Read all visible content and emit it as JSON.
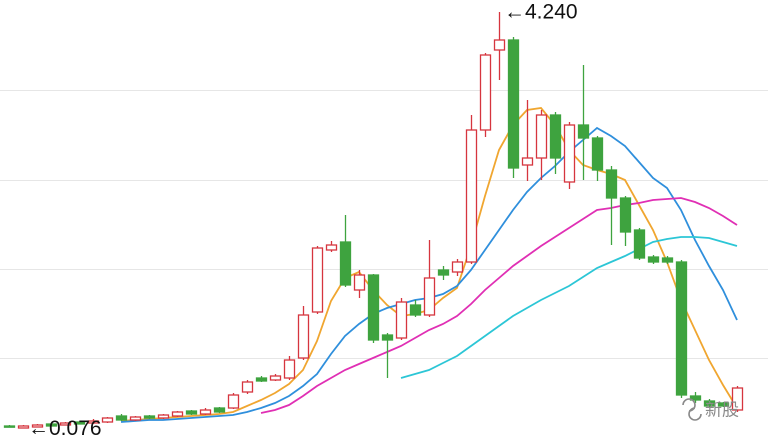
{
  "chart_data": {
    "type": "candlestick",
    "ylim": [
      -0.12,
      4.36
    ],
    "up_color": "#d6353e",
    "down_color": "#3ea33f",
    "open": [
      0.1,
      0.08,
      0.09,
      0.12,
      0.11,
      0.14,
      0.13,
      0.14,
      0.2,
      0.16,
      0.2,
      0.18,
      0.2,
      0.25,
      0.22,
      0.28,
      0.28,
      0.44,
      0.58,
      0.56,
      0.58,
      0.78,
      1.24,
      1.86,
      1.94,
      1.46,
      1.61,
      1.01,
      0.98,
      1.31,
      1.21,
      1.66,
      1.64,
      1.74,
      3.06,
      3.86,
      3.96,
      2.71,
      2.78,
      3.21,
      2.54,
      3.11,
      2.98,
      2.66,
      2.38,
      2.06,
      1.79,
      1.78,
      1.74,
      0.4,
      0.35,
      0.33,
      0.26
    ],
    "close": [
      0.09,
      0.1,
      0.11,
      0.1,
      0.13,
      0.12,
      0.15,
      0.18,
      0.16,
      0.19,
      0.18,
      0.21,
      0.24,
      0.22,
      0.26,
      0.24,
      0.41,
      0.54,
      0.55,
      0.6,
      0.76,
      1.21,
      1.88,
      1.91,
      1.51,
      1.61,
      0.96,
      0.96,
      1.34,
      1.21,
      1.58,
      1.61,
      1.74,
      3.06,
      3.81,
      3.96,
      2.68,
      2.78,
      3.21,
      2.78,
      3.11,
      2.98,
      2.66,
      2.38,
      2.04,
      1.78,
      1.74,
      1.74,
      0.41,
      0.36,
      0.3,
      0.3,
      0.48
    ],
    "high": [
      0.11,
      0.11,
      0.12,
      0.125,
      0.14,
      0.145,
      0.17,
      0.19,
      0.22,
      0.2,
      0.21,
      0.22,
      0.25,
      0.26,
      0.28,
      0.29,
      0.43,
      0.56,
      0.6,
      0.62,
      0.8,
      1.3,
      1.9,
      1.95,
      2.21,
      1.66,
      1.62,
      1.03,
      1.38,
      1.36,
      1.96,
      1.7,
      1.77,
      3.21,
      3.83,
      4.24,
      3.99,
      3.36,
      3.26,
      3.24,
      3.14,
      3.71,
      3.0,
      2.7,
      2.4,
      2.08,
      1.81,
      1.8,
      1.76,
      0.44,
      0.37,
      0.34,
      0.5
    ],
    "low": [
      0.085,
      0.076,
      0.085,
      0.095,
      0.105,
      0.115,
      0.12,
      0.13,
      0.15,
      0.15,
      0.17,
      0.17,
      0.19,
      0.21,
      0.21,
      0.23,
      0.27,
      0.42,
      0.54,
      0.55,
      0.56,
      0.76,
      1.22,
      1.84,
      1.49,
      1.38,
      0.93,
      0.58,
      0.96,
      1.19,
      1.19,
      1.56,
      1.6,
      1.72,
      2.99,
      3.56,
      2.58,
      2.55,
      2.56,
      2.62,
      2.47,
      2.56,
      2.55,
      1.91,
      1.9,
      1.76,
      1.72,
      1.72,
      0.38,
      0.33,
      0.29,
      0.29,
      0.24
    ],
    "series": [
      {
        "color": "#f0a630",
        "values": [
          null,
          null,
          null,
          null,
          null,
          null,
          null,
          null,
          0.15,
          0.16,
          0.17,
          0.18,
          0.19,
          0.2,
          0.21,
          0.22,
          0.24,
          0.3,
          0.36,
          0.43,
          0.52,
          0.66,
          0.95,
          1.35,
          1.58,
          1.64,
          1.46,
          1.31,
          1.2,
          1.22,
          1.26,
          1.38,
          1.48,
          1.9,
          2.4,
          2.86,
          3.11,
          3.26,
          3.28,
          3.11,
          2.86,
          2.71,
          2.66,
          2.62,
          2.56,
          2.31,
          2.06,
          1.74,
          1.36,
          1.06,
          0.76,
          0.51,
          0.28
        ]
      },
      {
        "color": "#2f8fdc",
        "values": [
          null,
          null,
          null,
          null,
          null,
          null,
          null,
          null,
          0.14,
          0.15,
          0.16,
          0.16,
          0.17,
          0.18,
          0.19,
          0.2,
          0.21,
          0.24,
          0.28,
          0.33,
          0.4,
          0.5,
          0.62,
          0.82,
          1.0,
          1.12,
          1.22,
          1.28,
          1.32,
          1.36,
          1.38,
          1.42,
          1.5,
          1.66,
          1.86,
          2.06,
          2.26,
          2.44,
          2.58,
          2.7,
          2.84,
          2.96,
          3.08,
          3.0,
          2.9,
          2.74,
          2.58,
          2.48,
          2.26,
          1.96,
          1.7,
          1.46,
          1.16
        ]
      },
      {
        "color": "#e02fb4",
        "values": [
          null,
          null,
          null,
          null,
          null,
          null,
          null,
          null,
          null,
          null,
          null,
          null,
          null,
          null,
          null,
          null,
          null,
          null,
          0.23,
          0.26,
          0.31,
          0.4,
          0.5,
          0.58,
          0.66,
          0.72,
          0.78,
          0.84,
          0.9,
          0.98,
          1.06,
          1.12,
          1.2,
          1.32,
          1.46,
          1.58,
          1.7,
          1.8,
          1.9,
          1.99,
          2.08,
          2.17,
          2.26,
          2.28,
          2.31,
          2.33,
          2.36,
          2.37,
          2.38,
          2.34,
          2.28,
          2.2,
          2.11
        ]
      },
      {
        "color": "#2cc6d6",
        "values": [
          null,
          null,
          null,
          null,
          null,
          null,
          null,
          null,
          null,
          null,
          null,
          null,
          null,
          null,
          null,
          null,
          null,
          null,
          null,
          null,
          null,
          null,
          null,
          null,
          null,
          null,
          null,
          null,
          0.58,
          0.62,
          0.66,
          0.73,
          0.8,
          0.9,
          1.0,
          1.1,
          1.2,
          1.28,
          1.36,
          1.43,
          1.5,
          1.59,
          1.68,
          1.74,
          1.8,
          1.87,
          1.94,
          1.97,
          1.99,
          1.99,
          1.98,
          1.94,
          1.9
        ]
      }
    ],
    "annotations": [
      {
        "label": "←4.240",
        "value": 4.24
      },
      {
        "label": "←0.076",
        "value": 0.076
      }
    ],
    "watermark": "新股"
  }
}
